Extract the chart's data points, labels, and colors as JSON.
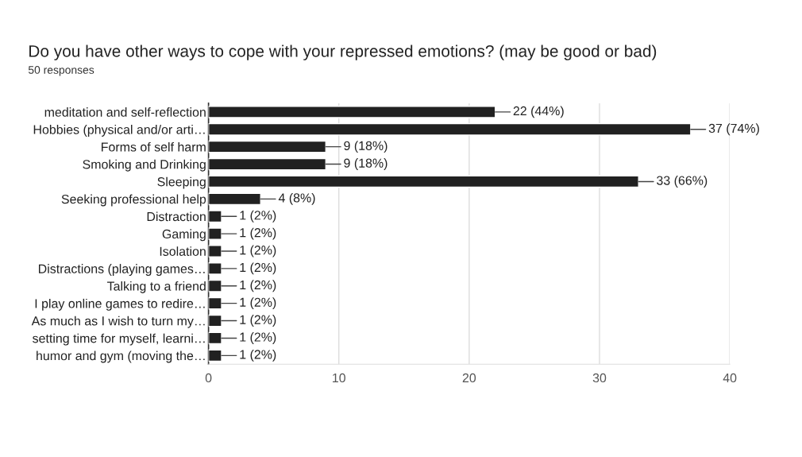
{
  "chart_data": {
    "type": "bar",
    "orientation": "horizontal",
    "title": "Do you have other ways to cope with your repressed emotions? (may be good or bad)",
    "subtitle": "50 responses",
    "categories": [
      "meditation and self-reflection",
      "Hobbies (physical and/or arti…",
      "Forms of self harm",
      "Smoking and Drinking",
      "Sleeping",
      "Seeking professional help",
      "Distraction",
      "Gaming",
      "Isolation",
      "Distractions (playing games…",
      "Talking to a friend",
      "I play online games to redire…",
      "As much as I wish to turn my…",
      "setting time for myself, learni…",
      "humor and gym (moving the…"
    ],
    "values": [
      22,
      37,
      9,
      9,
      33,
      4,
      1,
      1,
      1,
      1,
      1,
      1,
      1,
      1,
      1
    ],
    "value_labels": [
      "22 (44%)",
      "37 (74%)",
      "9 (18%)",
      "9 (18%)",
      "33 (66%)",
      "4 (8%)",
      "1 (2%)",
      "1 (2%)",
      "1 (2%)",
      "1 (2%)",
      "1 (2%)",
      "1 (2%)",
      "1 (2%)",
      "1 (2%)",
      "1 (2%)"
    ],
    "color": "#212121",
    "xlim": [
      0,
      40
    ],
    "xticks": [
      0,
      10,
      20,
      30,
      40
    ],
    "grid": "x",
    "legend": false
  }
}
